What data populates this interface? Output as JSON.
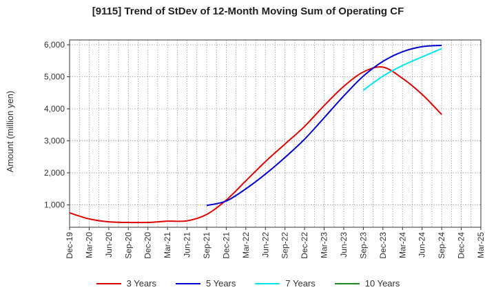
{
  "chart_data": {
    "type": "line",
    "title": "[9115]  Trend of StDev of 12-Month Moving Sum of Operating CF",
    "ylabel": "Amount (million yen)",
    "xlabel": "",
    "ylim": [
      300,
      6150
    ],
    "yticks": [
      1000,
      2000,
      3000,
      4000,
      5000,
      6000
    ],
    "ytick_labels": [
      "1,000",
      "2,000",
      "3,000",
      "4,000",
      "5,000",
      "6,000"
    ],
    "categories": [
      "Dec-19",
      "Mar-20",
      "Jun-20",
      "Sep-20",
      "Dec-20",
      "Mar-21",
      "Jun-21",
      "Sep-21",
      "Dec-21",
      "Mar-22",
      "Jun-22",
      "Sep-22",
      "Dec-22",
      "Mar-23",
      "Jun-23",
      "Sep-23",
      "Dec-23",
      "Mar-24",
      "Jun-24",
      "Sep-24",
      "Dec-24",
      "Mar-25"
    ],
    "grid": true,
    "legend_position": "bottom",
    "series": [
      {
        "name": "3 Years",
        "color": "#dd0000",
        "values": [
          750,
          560,
          470,
          450,
          450,
          490,
          500,
          700,
          1150,
          1750,
          2350,
          2900,
          3450,
          4100,
          4700,
          5150,
          5300,
          4950,
          4450,
          3820,
          null,
          null
        ]
      },
      {
        "name": "5 Years",
        "color": "#0000cc",
        "values": [
          null,
          null,
          null,
          null,
          null,
          null,
          null,
          980,
          1120,
          1500,
          1960,
          2480,
          3050,
          3720,
          4400,
          5020,
          5480,
          5780,
          5940,
          5980,
          null,
          null
        ]
      },
      {
        "name": "7 Years",
        "color": "#00e5ee",
        "values": [
          null,
          null,
          null,
          null,
          null,
          null,
          null,
          null,
          null,
          null,
          null,
          null,
          null,
          null,
          null,
          4580,
          5020,
          5350,
          5620,
          5880,
          null,
          null
        ]
      },
      {
        "name": "10 Years",
        "color": "#228b22",
        "values": [
          null,
          null,
          null,
          null,
          null,
          null,
          null,
          null,
          null,
          null,
          null,
          null,
          null,
          null,
          null,
          null,
          null,
          null,
          null,
          null,
          null,
          null
        ]
      }
    ]
  }
}
